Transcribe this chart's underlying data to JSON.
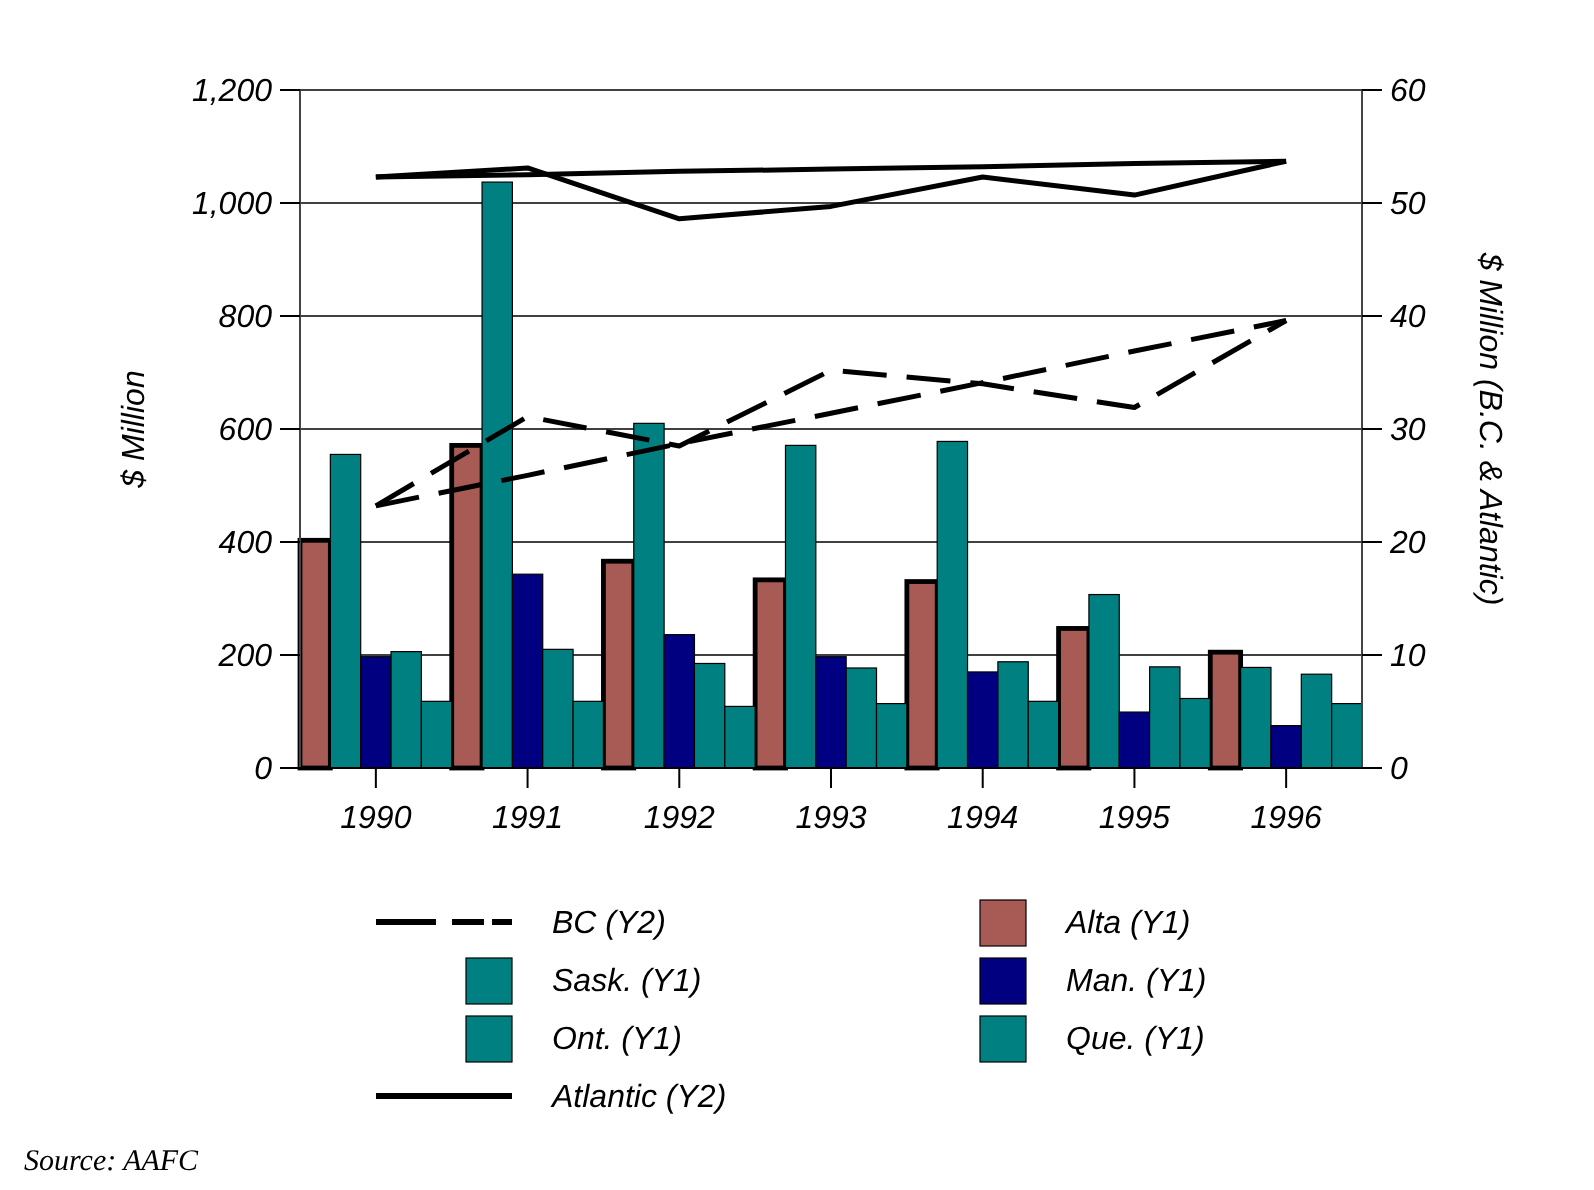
{
  "chart_data": {
    "type": "bar",
    "x": [
      1990,
      1991,
      1992,
      1993,
      1994,
      1995,
      1996
    ],
    "xlim": [
      1989.5,
      1996.5
    ],
    "xticks": [
      1990,
      1991,
      1992,
      1993,
      1994,
      1995,
      1996
    ],
    "ylabel": "$ Million",
    "y2label": "$ Million (B.C. & Atlantic)",
    "ylim": [
      0,
      1200
    ],
    "yticks": [
      0,
      200,
      400,
      600,
      800,
      {
        "value": 1000,
        "label": "1,000"
      },
      {
        "value": 1200,
        "label": "1,200"
      }
    ],
    "y2lim": [
      0,
      60
    ],
    "y2ticks": [
      0,
      10,
      20,
      30,
      40,
      50,
      60
    ],
    "grid": "y",
    "legend": "bottom",
    "series": [
      {
        "name": "BC (Y2)",
        "type": "line",
        "axis": "y2",
        "color": "#000000",
        "line_style": "dashed",
        "values": [
          23.2,
          31.1,
          28.5,
          35.2,
          34.0,
          31.9,
          39.6
        ]
      },
      {
        "name": "Alta (Y1)",
        "color": "#a85a55",
        "values": [
          403,
          571,
          366,
          333,
          330,
          247,
          205
        ]
      },
      {
        "name": "Sask. (Y1)",
        "color": "#008080",
        "values": [
          555,
          1037,
          610,
          571,
          578,
          307,
          178
        ]
      },
      {
        "name": "Man. (Y1)",
        "color": "#000080",
        "values": [
          197,
          343,
          236,
          197,
          170,
          99,
          75
        ]
      },
      {
        "name": "Ont. (Y1)",
        "color": "#008080",
        "values": [
          206,
          210,
          185,
          177,
          188,
          179,
          166
        ]
      },
      {
        "name": "Que. (Y1)",
        "color": "#008080",
        "values": [
          118,
          118,
          109,
          114,
          118,
          123,
          114
        ]
      },
      {
        "name": "Atlantic (Y2)",
        "type": "line",
        "axis": "y2",
        "color": "#000000",
        "line_style": "solid",
        "values": [
          52.3,
          53.1,
          48.6,
          49.7,
          52.3,
          50.7,
          53.7
        ]
      },
      {
        "type": "line",
        "axis": "y2",
        "color": "#000000",
        "line_style": "dashed",
        "values": [
          23.2,
          25.9,
          28.7,
          31.4,
          34.1,
          36.9,
          39.6
        ]
      },
      {
        "type": "line",
        "axis": "y2",
        "color": "#000000",
        "line_style": "solid",
        "values": [
          52.3,
          52.5,
          52.8,
          53.0,
          53.2,
          53.5,
          53.7
        ]
      }
    ],
    "annotations": [
      "Source: AAFC"
    ]
  }
}
